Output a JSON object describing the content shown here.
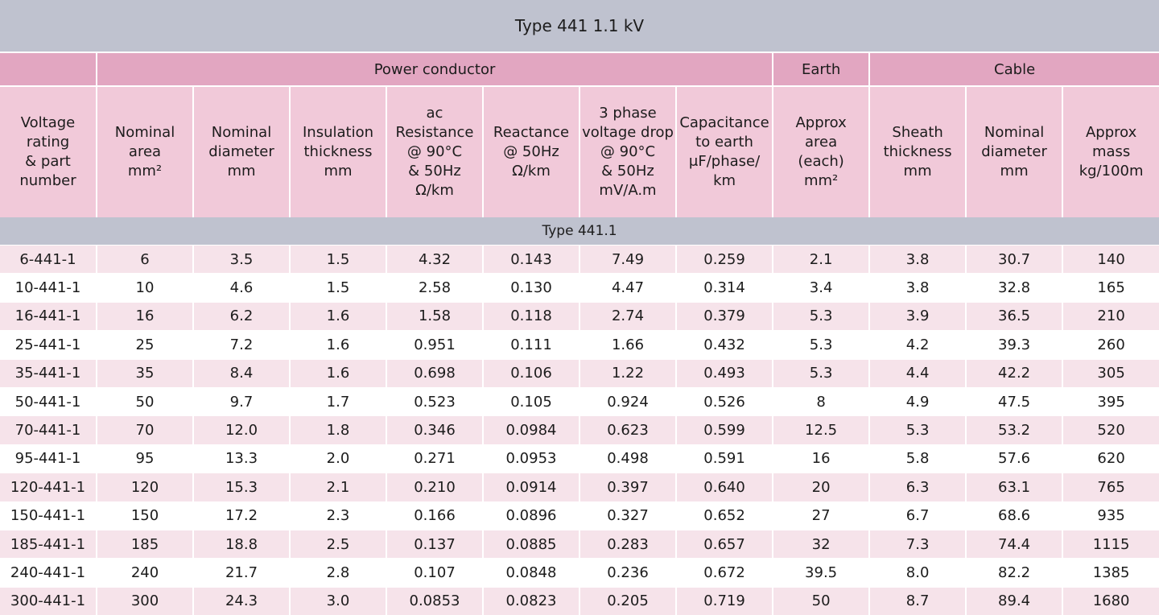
{
  "title": "Type 441  1.1 kV",
  "groups": {
    "power_conductor": "Power conductor",
    "earth": "Earth",
    "cable": "Cable"
  },
  "headers": [
    "Voltage\nrating\n& part\nnumber",
    "Nominal\narea\nmm²",
    "Nominal\ndiameter\nmm",
    "Insulation\nthickness\nmm",
    "ac\nResistance\n@ 90°C\n& 50Hz\nΩ/km",
    "Reactance\n@ 50Hz\nΩ/km",
    "3 phase\nvoltage drop\n@ 90°C\n& 50Hz\nmV/A.m",
    "Capacitance\nto earth\nμF/phase/\nkm",
    "Approx\narea\n(each)\nmm²",
    "Sheath\nthickness\nmm",
    "Nominal\ndiameter\nmm",
    "Approx\nmass\nkg/100m"
  ],
  "subgroup": "Type 441.1",
  "rows": [
    [
      "6-441-1",
      "6",
      "3.5",
      "1.5",
      "4.32",
      "0.143",
      "7.49",
      "0.259",
      "2.1",
      "3.8",
      "30.7",
      "140"
    ],
    [
      "10-441-1",
      "10",
      "4.6",
      "1.5",
      "2.58",
      "0.130",
      "4.47",
      "0.314",
      "3.4",
      "3.8",
      "32.8",
      "165"
    ],
    [
      "16-441-1",
      "16",
      "6.2",
      "1.6",
      "1.58",
      "0.118",
      "2.74",
      "0.379",
      "5.3",
      "3.9",
      "36.5",
      "210"
    ],
    [
      "25-441-1",
      "25",
      "7.2",
      "1.6",
      "0.951",
      "0.111",
      "1.66",
      "0.432",
      "5.3",
      "4.2",
      "39.3",
      "260"
    ],
    [
      "35-441-1",
      "35",
      "8.4",
      "1.6",
      "0.698",
      "0.106",
      "1.22",
      "0.493",
      "5.3",
      "4.4",
      "42.2",
      "305"
    ],
    [
      "50-441-1",
      "50",
      "9.7",
      "1.7",
      "0.523",
      "0.105",
      "0.924",
      "0.526",
      "8",
      "4.9",
      "47.5",
      "395"
    ],
    [
      "70-441-1",
      "70",
      "12.0",
      "1.8",
      "0.346",
      "0.0984",
      "0.623",
      "0.599",
      "12.5",
      "5.3",
      "53.2",
      "520"
    ],
    [
      "95-441-1",
      "95",
      "13.3",
      "2.0",
      "0.271",
      "0.0953",
      "0.498",
      "0.591",
      "16",
      "5.8",
      "57.6",
      "620"
    ],
    [
      "120-441-1",
      "120",
      "15.3",
      "2.1",
      "0.210",
      "0.0914",
      "0.397",
      "0.640",
      "20",
      "6.3",
      "63.1",
      "765"
    ],
    [
      "150-441-1",
      "150",
      "17.2",
      "2.3",
      "0.166",
      "0.0896",
      "0.327",
      "0.652",
      "27",
      "6.7",
      "68.6",
      "935"
    ],
    [
      "185-441-1",
      "185",
      "18.8",
      "2.5",
      "0.137",
      "0.0885",
      "0.283",
      "0.657",
      "32",
      "7.3",
      "74.4",
      "1115"
    ],
    [
      "240-441-1",
      "240",
      "21.7",
      "2.8",
      "0.107",
      "0.0848",
      "0.236",
      "0.672",
      "39.5",
      "8.0",
      "82.2",
      "1385"
    ],
    [
      "300-441-1",
      "300",
      "24.3",
      "3.0",
      "0.0853",
      "0.0823",
      "0.205",
      "0.719",
      "50",
      "8.7",
      "89.4",
      "1680"
    ]
  ]
}
